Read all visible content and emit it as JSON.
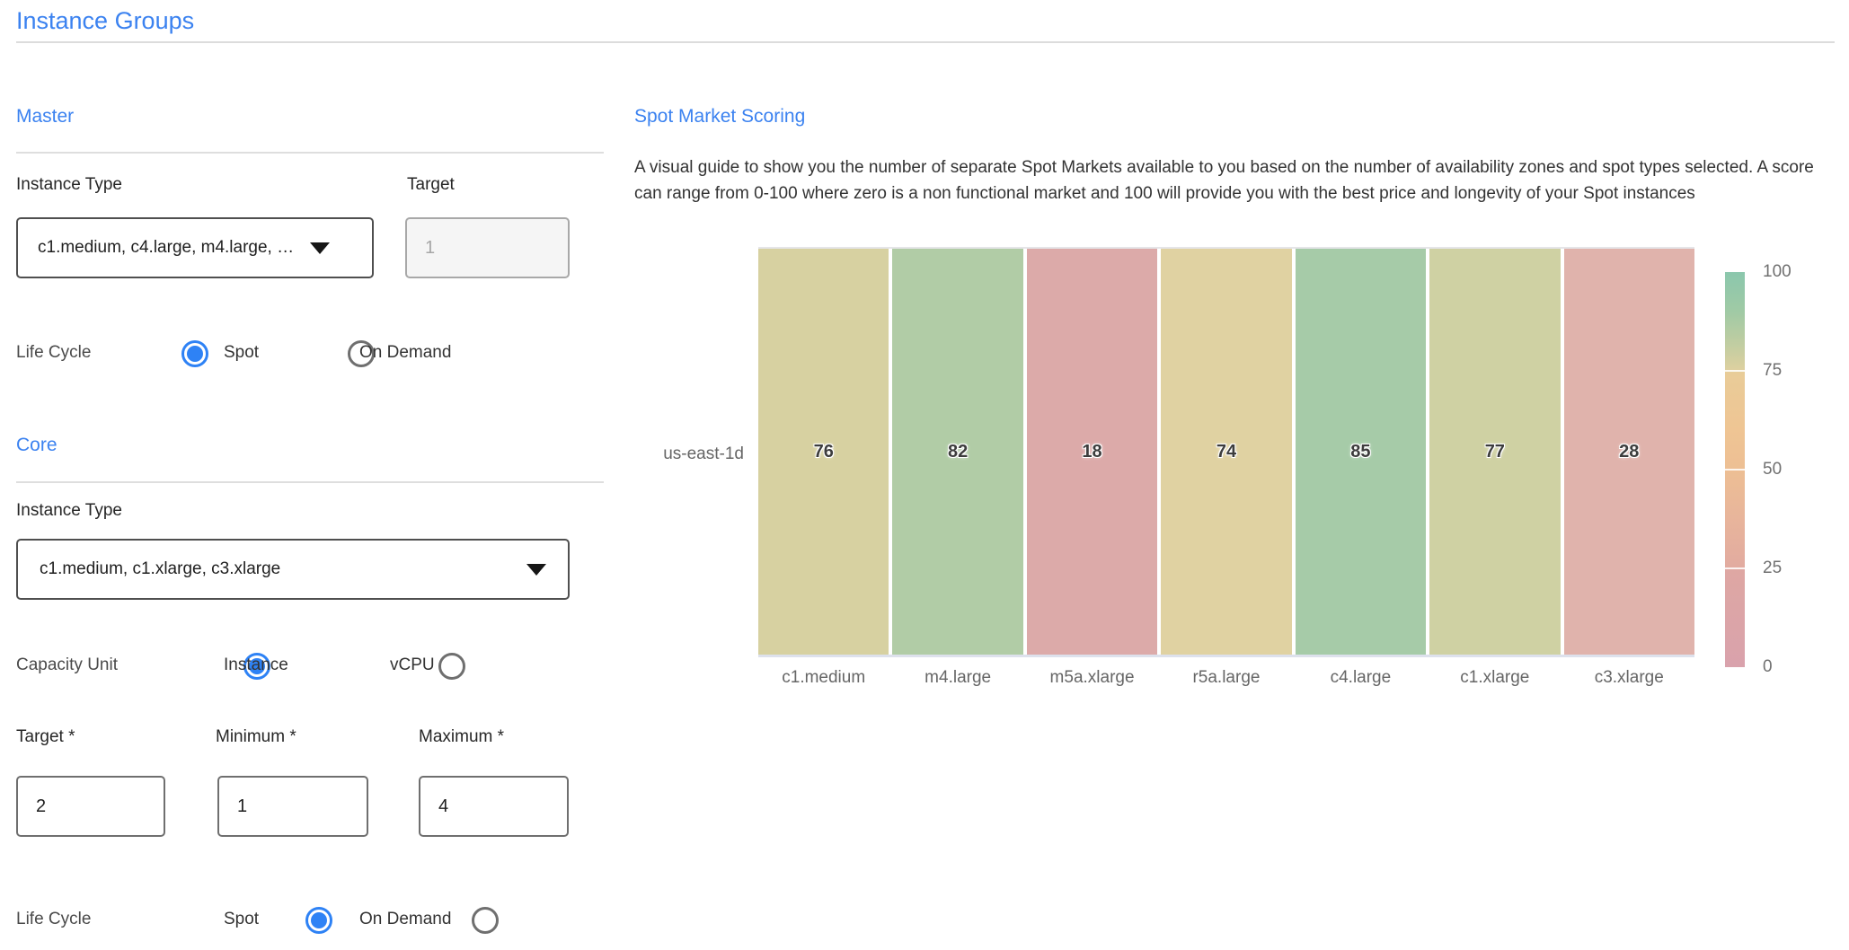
{
  "page": {
    "title": "Instance Groups"
  },
  "master": {
    "heading": "Master",
    "instance_type_label": "Instance Type",
    "instance_type_value": "c1.medium, c4.large, m4.large, …",
    "target_label": "Target",
    "target_value": "1",
    "life_cycle_label": "Life Cycle",
    "life_cycle_options": [
      "Spot",
      "On Demand"
    ],
    "life_cycle_selected": "Spot"
  },
  "core": {
    "heading": "Core",
    "instance_type_label": "Instance Type",
    "instance_type_value": "c1.medium, c1.xlarge, c3.xlarge",
    "capacity_unit_label": "Capacity Unit",
    "capacity_unit_options": [
      "Instance",
      "vCPU"
    ],
    "capacity_unit_selected": "Instance",
    "target_label": "Target *",
    "target_value": "2",
    "minimum_label": "Minimum *",
    "minimum_value": "1",
    "maximum_label": "Maximum *",
    "maximum_value": "4",
    "life_cycle_label": "Life Cycle",
    "life_cycle_options": [
      "Spot",
      "On Demand"
    ],
    "life_cycle_selected": "Spot"
  },
  "spot_market": {
    "heading": "Spot Market Scoring",
    "description": "A visual guide to show you the number of separate Spot Markets available to you based on the number of availability zones and spot types selected. A score can range from 0-100 where zero is a non functional market and 100 will provide you with the best price and longevity of your Spot instances"
  },
  "chart_data": {
    "type": "heatmap",
    "title": "Spot Market Scoring",
    "row_labels": [
      "us-east-1d"
    ],
    "categories": [
      "c1.medium",
      "m4.large",
      "m5a.xlarge",
      "r5a.large",
      "c4.large",
      "c1.xlarge",
      "c3.xlarge"
    ],
    "values": [
      [
        76,
        82,
        18,
        74,
        85,
        77,
        28
      ]
    ],
    "cell_colors": [
      [
        "#d7d1a1",
        "#b1cca6",
        "#dcaaa9",
        "#e0d2a2",
        "#a6cba8",
        "#cfd1a3",
        "#e0b3ac"
      ]
    ],
    "value_range": [
      0,
      100
    ],
    "legend_position": "right",
    "colorbar": {
      "ticks": [
        100,
        75,
        50,
        25,
        0
      ],
      "gradient": [
        [
          "#8bc7ad",
          0
        ],
        [
          "#a0caa5",
          10
        ],
        [
          "#c8cea1",
          20
        ],
        [
          "#ddd0a0",
          24.6
        ],
        [
          "#e9cc98",
          25.6
        ],
        [
          "#efc594",
          40
        ],
        [
          "#edbf94",
          50
        ],
        [
          "#e8b59b",
          62
        ],
        [
          "#e2aba0",
          74.6
        ],
        [
          "#dea7a3",
          75.6
        ],
        [
          "#d9a2ac",
          100
        ]
      ]
    }
  },
  "colors": {
    "accent": "#3b82f0",
    "radio_selected": "#2e82f5"
  }
}
